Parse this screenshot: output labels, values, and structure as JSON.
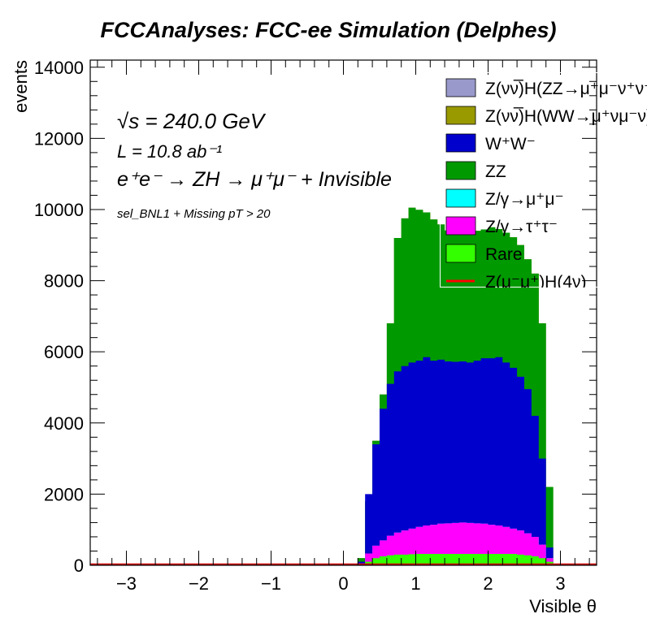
{
  "figure": {
    "title": "FCCAnalyses: FCC-ee Simulation (Delphes)",
    "annotations": {
      "line1": "√s = 240.0 GeV",
      "line2": "L = 10.8 ab⁻¹",
      "line3": "e⁺e⁻ → ZH → μ⁺μ⁻ + Invisible",
      "line4": "sel_BNL1 + Missing pT > 20"
    }
  },
  "chart_data": {
    "type": "area",
    "stacked": true,
    "histogram": true,
    "xlabel": "Visible θ",
    "ylabel": "events",
    "xlim": [
      -3.5,
      3.5
    ],
    "ylim": [
      0,
      14200
    ],
    "x_ticks": [
      -3,
      -2,
      -1,
      0,
      1,
      2,
      3
    ],
    "x_tick_labels": [
      "−3",
      "−2",
      "−1",
      "0",
      "1",
      "2",
      "3"
    ],
    "y_ticks": [
      0,
      2000,
      4000,
      6000,
      8000,
      10000,
      12000,
      14000
    ],
    "y_tick_labels": [
      "0",
      "2000",
      "4000",
      "6000",
      "8000",
      "10000",
      "12000",
      "14000"
    ],
    "bin_edges": [
      0.2,
      0.3,
      0.4,
      0.5,
      0.6,
      0.7,
      0.8,
      0.9,
      1.0,
      1.1,
      1.2,
      1.3,
      1.4,
      1.5,
      1.6,
      1.7,
      1.8,
      1.9,
      2.0,
      2.1,
      2.2,
      2.3,
      2.4,
      2.5,
      2.6,
      2.7,
      2.8,
      2.9
    ],
    "grid": false,
    "legend_position": "top-right",
    "series": [
      {
        "name": "Rare",
        "color": "#33ff00",
        "cumulative": [
          20,
          100,
          200,
          250,
          280,
          300,
          300,
          310,
          320,
          320,
          320,
          320,
          320,
          320,
          320,
          320,
          320,
          320,
          320,
          320,
          320,
          320,
          300,
          280,
          250,
          200,
          100
        ]
      },
      {
        "name": "Z/γ→τ⁺τ⁻",
        "color": "#ff00ff",
        "cumulative": [
          50,
          330,
          550,
          700,
          830,
          920,
          980,
          1030,
          1080,
          1120,
          1140,
          1170,
          1180,
          1190,
          1200,
          1190,
          1180,
          1170,
          1140,
          1120,
          1080,
          1030,
          980,
          900,
          800,
          580,
          200
        ]
      },
      {
        "name": "Z/γ→μ⁺μ⁻",
        "color": "#00ffff",
        "cumulative": [
          50,
          330,
          550,
          700,
          830,
          920,
          980,
          1030,
          1080,
          1120,
          1140,
          1170,
          1180,
          1190,
          1200,
          1190,
          1180,
          1170,
          1140,
          1120,
          1080,
          1030,
          980,
          900,
          800,
          580,
          200
        ]
      },
      {
        "name": "W⁺W⁻",
        "color": "#0000cc",
        "cumulative": [
          100,
          2000,
          3400,
          4400,
          5100,
          5450,
          5600,
          5700,
          5750,
          5850,
          5750,
          5780,
          5730,
          5720,
          5730,
          5700,
          5750,
          5820,
          5820,
          5850,
          5700,
          5550,
          5300,
          4950,
          4200,
          3000,
          500
        ]
      },
      {
        "name": "ZZ",
        "color": "#009900",
        "cumulative": [
          200,
          1800,
          3500,
          4800,
          6800,
          9200,
          9750,
          10050,
          9990,
          9920,
          9720,
          9580,
          9410,
          9370,
          9400,
          9340,
          9400,
          9440,
          9500,
          9450,
          9350,
          9220,
          9000,
          8600,
          8200,
          6800,
          2200
        ]
      },
      {
        "name": "Z(νν̅)H(WW→μ⁺νμ⁻ν)",
        "color": "#999900",
        "cumulative": [
          200,
          1800,
          3500,
          4800,
          6800,
          9200,
          9750,
          10050,
          9990,
          9920,
          9720,
          9580,
          9410,
          9370,
          9400,
          9340,
          9400,
          9440,
          9500,
          9450,
          9350,
          9220,
          9000,
          8600,
          8200,
          6800,
          2200
        ]
      },
      {
        "name": "Z(νν̅)H(ZZ→μ⁺μ⁻ν⁺ν⁻)",
        "color": "#9999cc",
        "cumulative": [
          200,
          1800,
          3500,
          4800,
          6800,
          9200,
          9750,
          10050,
          9990,
          9920,
          9720,
          9580,
          9410,
          9370,
          9400,
          9340,
          9400,
          9440,
          9500,
          9450,
          9350,
          9220,
          9000,
          8600,
          8200,
          6800,
          2200
        ]
      },
      {
        "name": "Z(μ⁻μ⁺)H(4ν)",
        "color": "#ff0000",
        "line": true,
        "values": [
          10,
          10,
          10,
          10,
          10,
          10,
          10,
          10,
          10,
          10,
          10,
          10,
          10,
          10,
          10,
          10,
          10,
          10,
          10,
          10,
          10,
          10,
          10,
          10,
          10,
          10,
          10
        ]
      }
    ],
    "legend_entries": [
      {
        "label": "Z(νν̅)H(ZZ→μ⁺μ⁻ν⁺ν⁻)",
        "color": "#9999cc",
        "kind": "box"
      },
      {
        "label": "Z(νν̅)H(WW→μ⁺νμ⁻ν)",
        "color": "#999900",
        "kind": "box"
      },
      {
        "label": "W⁺W⁻",
        "color": "#0000cc",
        "kind": "box"
      },
      {
        "label": "ZZ",
        "color": "#009900",
        "kind": "box"
      },
      {
        "label": "Z/γ→μ⁺μ⁻",
        "color": "#00ffff",
        "kind": "box"
      },
      {
        "label": "Z/γ→τ⁺τ⁻",
        "color": "#ff00ff",
        "kind": "box"
      },
      {
        "label": "Rare",
        "color": "#33ff00",
        "kind": "box"
      },
      {
        "label": "Z(μ⁻μ⁺)H(4ν)",
        "color": "#ff0000",
        "kind": "line"
      }
    ]
  }
}
